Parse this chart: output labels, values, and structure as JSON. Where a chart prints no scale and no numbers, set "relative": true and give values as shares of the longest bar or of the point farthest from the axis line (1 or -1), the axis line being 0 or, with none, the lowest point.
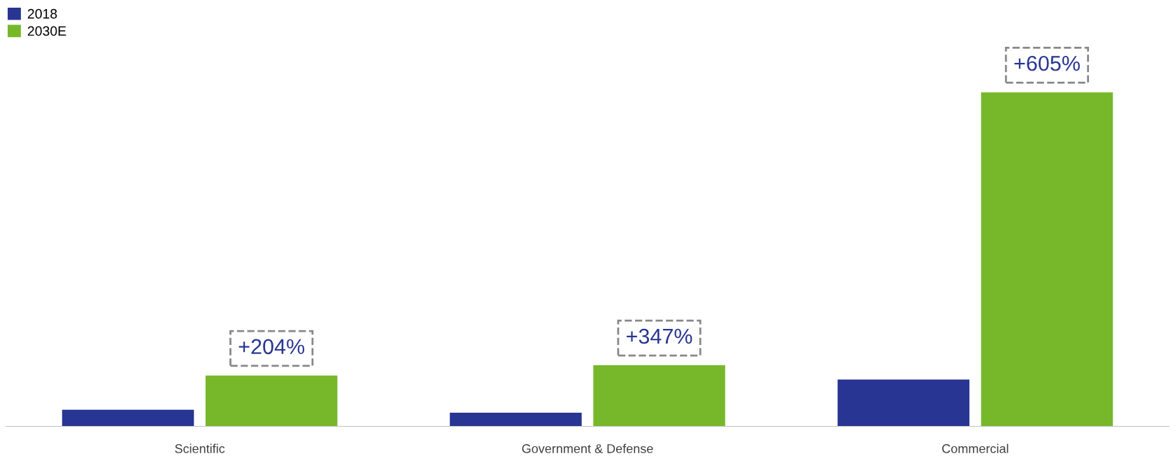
{
  "chart_data": {
    "type": "bar",
    "relative": true,
    "categories": [
      "Scientific",
      "Government & Defense",
      "Commercial"
    ],
    "series": [
      {
        "name": "2018",
        "color": "#283593",
        "values": [
          0.05,
          0.041,
          0.14
        ]
      },
      {
        "name": "2030E",
        "color": "#76b82a",
        "values": [
          0.152,
          0.183,
          1
        ]
      }
    ],
    "annotations": [
      "+204%",
      "+347%",
      "+605%"
    ],
    "legend": "top left",
    "grid": false
  }
}
